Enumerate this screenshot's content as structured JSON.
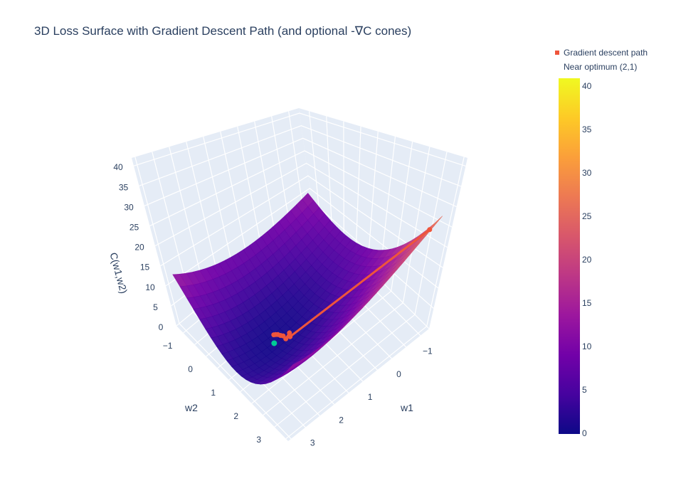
{
  "chart_data": {
    "type": "surface3d",
    "title": "3D Loss Surface with Gradient Descent Path (and optional -∇C cones)",
    "xlabel": "w1",
    "ylabel": "w2",
    "zlabel": "C(w1,w2)",
    "x_ticks": [
      "−1",
      "0",
      "1",
      "2",
      "3"
    ],
    "y_ticks": [
      "−1",
      "0",
      "1",
      "2",
      "3"
    ],
    "z_ticks": [
      "0",
      "5",
      "10",
      "15",
      "20",
      "25",
      "30",
      "35",
      "40"
    ],
    "zlim": [
      0,
      42
    ],
    "colorscale": "plasma",
    "colorbar_ticks": [
      "0",
      "5",
      "10",
      "15",
      "20",
      "25",
      "30",
      "35",
      "40"
    ],
    "series": [
      {
        "name": "Gradient descent path",
        "color": "#ef553b",
        "points": [
          [
            -1,
            3.2,
            24
          ],
          [
            1.6,
            1.2,
            0.5
          ],
          [
            1.7,
            1.3,
            2.5
          ],
          [
            1.75,
            1.2,
            0.8
          ],
          [
            1.8,
            1.15,
            1.5
          ],
          [
            1.85,
            1.1,
            1.6
          ],
          [
            1.9,
            1.05,
            1.8
          ],
          [
            1.95,
            1.02,
            1.9
          ],
          [
            2,
            1,
            2
          ]
        ]
      },
      {
        "name": "Near optimum (2,1)",
        "color": "#00cc96",
        "points": [
          [
            2,
            1,
            0
          ]
        ]
      }
    ],
    "legend_position": "top-right"
  }
}
